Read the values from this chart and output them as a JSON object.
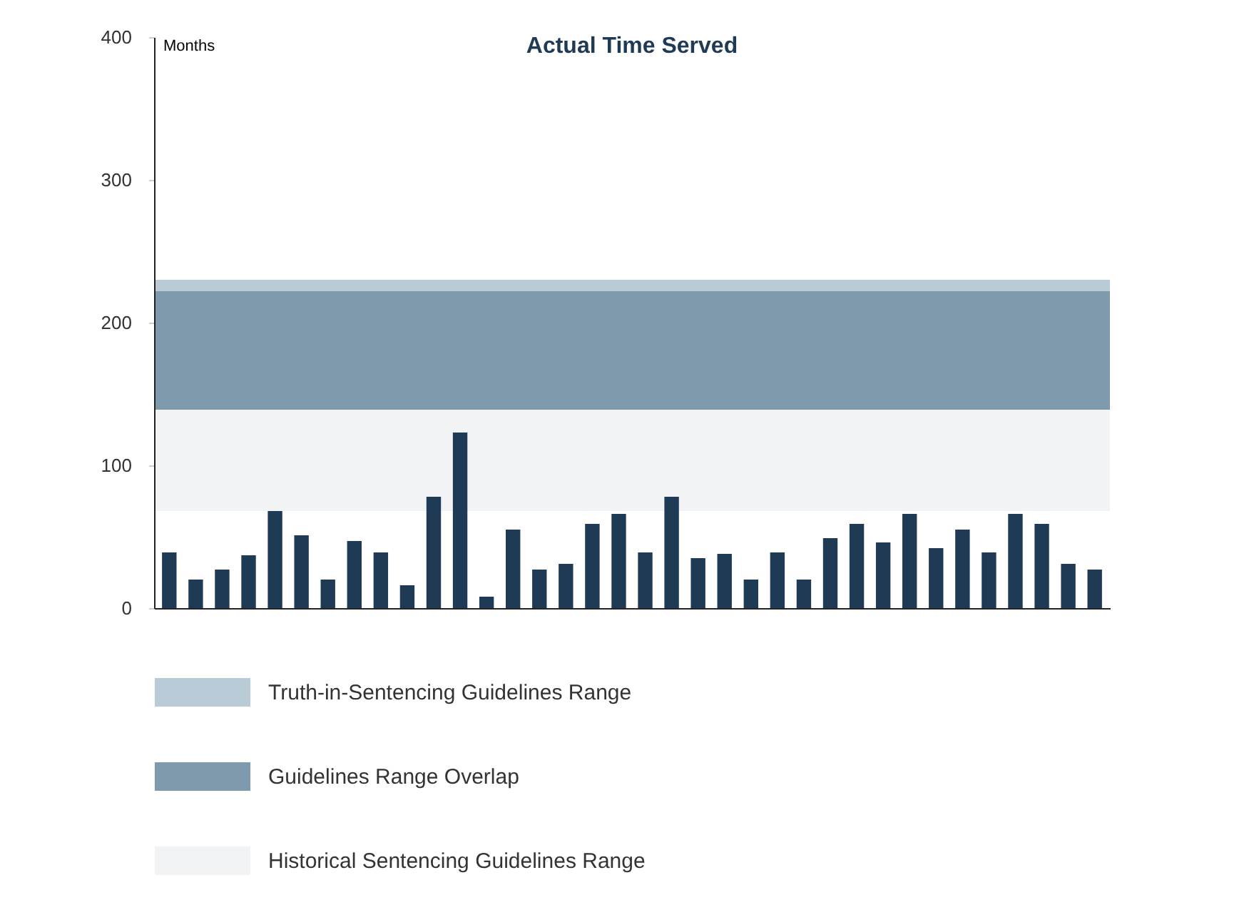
{
  "chart_data": {
    "type": "bar",
    "title": "Actual Time Served",
    "ylabel": "Months",
    "categories": [
      null,
      null,
      null,
      null,
      null,
      null,
      null,
      null,
      null,
      null,
      null,
      null,
      null,
      null,
      null,
      null,
      null,
      null,
      null,
      null,
      null,
      null,
      null,
      null,
      null,
      null,
      null,
      null,
      null,
      null,
      null,
      null,
      null,
      null,
      null,
      null
    ],
    "values": [
      39,
      20,
      27,
      37,
      68,
      51,
      20,
      47,
      39,
      16,
      78,
      123,
      8,
      55,
      27,
      31,
      59,
      66,
      39,
      78,
      35,
      38,
      20,
      39,
      20,
      49,
      59,
      46,
      66,
      42,
      55,
      39,
      66,
      59,
      31,
      27
    ],
    "color": "#1f3a55",
    "ylim": [
      0,
      400
    ],
    "yticks": [
      0,
      100,
      200,
      300,
      400
    ],
    "tick_labels": "y",
    "bands": [
      {
        "axis": "y",
        "from": 222,
        "to": 230,
        "label": "Truth-in-Sentencing Guidelines Range",
        "color": "#b9cbd6"
      },
      {
        "axis": "y",
        "from": 139,
        "to": 222,
        "label": "Guidelines Range Overlap",
        "color": "#7e9aac"
      },
      {
        "axis": "y",
        "from": 68,
        "to": 139,
        "label": "Historical Sentencing Guidelines Range",
        "color": "#f1f3f5"
      }
    ],
    "legend": "bottom"
  }
}
